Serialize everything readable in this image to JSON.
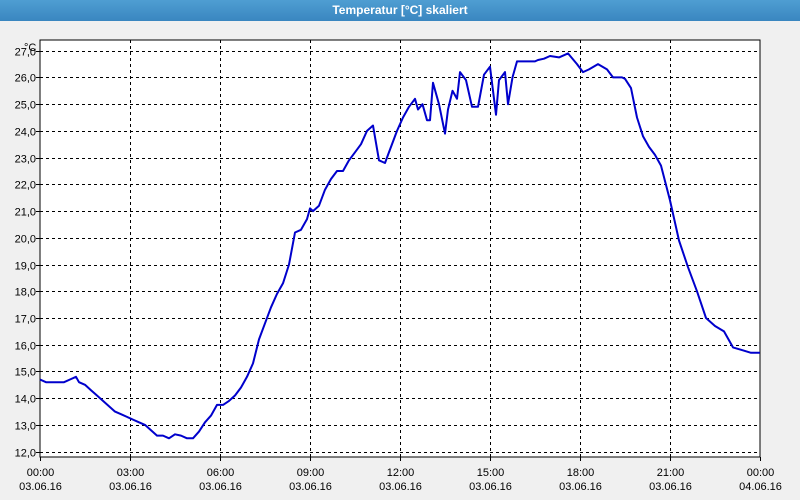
{
  "window": {
    "title": "Temperatur [°C] skaliert"
  },
  "colors": {
    "titlebar": "#3a86c0",
    "line": "#0000cc",
    "plot_background": "#ffffff",
    "grid": "#000000"
  },
  "chart_data": {
    "type": "line",
    "title": "Temperatur [°C] skaliert",
    "ylabel": "°C",
    "xlabel": "",
    "grid": true,
    "grid_style": "dashed",
    "ylim": [
      11.8,
      27.4
    ],
    "xlim": [
      0,
      24
    ],
    "y_ticks": [
      "12,0",
      "13,0",
      "14,0",
      "15,0",
      "16,0",
      "17,0",
      "18,0",
      "19,0",
      "20,0",
      "21,0",
      "22,0",
      "23,0",
      "24,0",
      "25,0",
      "26,0",
      "27,0"
    ],
    "x_ticks": [
      {
        "time": "00:00",
        "date": "03.06.16"
      },
      {
        "time": "03:00",
        "date": "03.06.16"
      },
      {
        "time": "06:00",
        "date": "03.06.16"
      },
      {
        "time": "09:00",
        "date": "03.06.16"
      },
      {
        "time": "12:00",
        "date": "03.06.16"
      },
      {
        "time": "15:00",
        "date": "03.06.16"
      },
      {
        "time": "18:00",
        "date": "03.06.16"
      },
      {
        "time": "21:00",
        "date": "03.06.16"
      },
      {
        "time": "00:00",
        "date": "04.06.16"
      }
    ],
    "series": [
      {
        "x": [
          0.0,
          0.2,
          0.5,
          0.8,
          1.0,
          1.2,
          1.3,
          1.5,
          1.7,
          1.9,
          2.1,
          2.3,
          2.5,
          2.7,
          2.9,
          3.1,
          3.3,
          3.5,
          3.7,
          3.9,
          4.1,
          4.3,
          4.5,
          4.7,
          4.9,
          5.1,
          5.3,
          5.5,
          5.7,
          5.9,
          6.1,
          6.3,
          6.5,
          6.7,
          6.9,
          7.1,
          7.3,
          7.5,
          7.7,
          7.9,
          8.1,
          8.3,
          8.5,
          8.7,
          8.9,
          9.0,
          9.1,
          9.3,
          9.5,
          9.7,
          9.9,
          10.1,
          10.3,
          10.5,
          10.7,
          10.9,
          11.1,
          11.3,
          11.5,
          11.6,
          11.7,
          11.9,
          12.1,
          12.3,
          12.5,
          12.6,
          12.75,
          12.9,
          13.0,
          13.1,
          13.3,
          13.5,
          13.6,
          13.75,
          13.9,
          14.0,
          14.2,
          14.4,
          14.6,
          14.8,
          15.0,
          15.2,
          15.3,
          15.5,
          15.6,
          15.75,
          15.9,
          16.1,
          16.3,
          16.5,
          16.6,
          16.8,
          17.0,
          17.3,
          17.6,
          17.9,
          18.1,
          18.3,
          18.6,
          18.9,
          19.1,
          19.4,
          19.5,
          19.7,
          19.9,
          20.1,
          20.3,
          20.5,
          20.7,
          21.0,
          21.3,
          21.6,
          21.9,
          22.2,
          22.5,
          22.8,
          23.1,
          23.4,
          23.7,
          24.0
        ],
        "y": [
          14.7,
          14.6,
          14.6,
          14.6,
          14.7,
          14.8,
          14.6,
          14.5,
          14.3,
          14.1,
          13.9,
          13.7,
          13.5,
          13.4,
          13.3,
          13.2,
          13.1,
          13.0,
          12.8,
          12.6,
          12.6,
          12.5,
          12.65,
          12.6,
          12.5,
          12.5,
          12.75,
          13.1,
          13.35,
          13.75,
          13.75,
          13.9,
          14.1,
          14.4,
          14.8,
          15.3,
          16.2,
          16.8,
          17.4,
          17.9,
          18.3,
          19.0,
          20.2,
          20.3,
          20.7,
          21.1,
          21.0,
          21.2,
          21.8,
          22.2,
          22.5,
          22.5,
          22.9,
          23.2,
          23.5,
          24.0,
          24.2,
          22.9,
          22.8,
          23.1,
          23.4,
          24.0,
          24.5,
          24.9,
          25.2,
          24.8,
          25.0,
          24.4,
          24.4,
          25.8,
          25.0,
          23.9,
          24.8,
          25.5,
          25.2,
          26.2,
          25.9,
          24.9,
          24.9,
          26.1,
          26.4,
          24.6,
          25.9,
          26.2,
          25.0,
          26.0,
          26.6,
          26.6,
          26.6,
          26.6,
          26.65,
          26.7,
          26.8,
          26.75,
          26.9,
          26.5,
          26.2,
          26.3,
          26.5,
          26.3,
          26.0,
          26.0,
          25.95,
          25.6,
          24.5,
          23.8,
          23.4,
          23.1,
          22.7,
          21.4,
          19.9,
          18.9,
          18.0,
          17.0,
          16.7,
          16.5,
          15.9,
          15.8,
          15.7,
          15.7
        ]
      }
    ]
  }
}
